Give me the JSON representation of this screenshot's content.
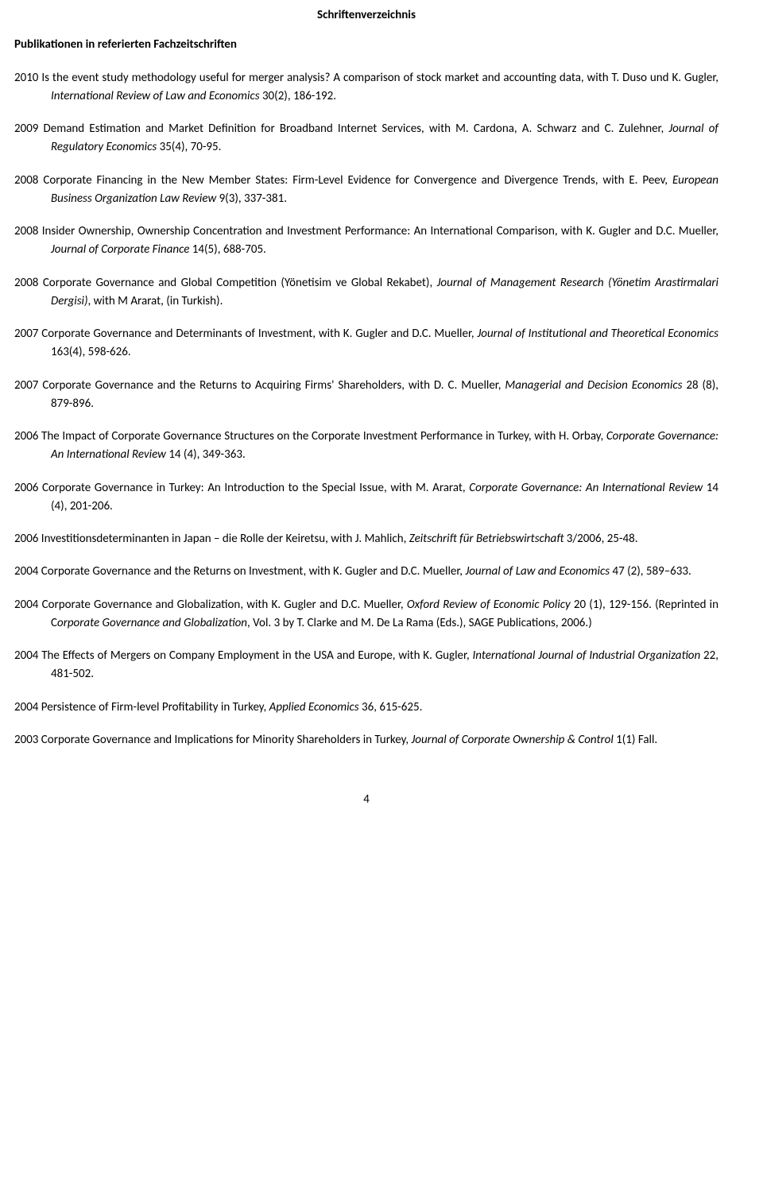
{
  "document_title": "Schriftenverzeichnis",
  "section_heading": "Publikationen in referierten Fachzeitschriften",
  "page_number": "4",
  "entries": [
    {
      "plain1": "2010 Is the event study methodology useful for merger analysis? A comparison of stock market and accounting data, with T. Duso und K. Gugler, ",
      "italic1": "International Review of Law and Economics",
      "plain2": " 30(2), 186-192."
    },
    {
      "plain1": "2009 Demand Estimation and Market Definition for Broadband Internet Services, with M. Cardona, A. Schwarz and C. Zulehner, ",
      "italic1": "Journal of Regulatory Economics",
      "plain2": " 35(4), 70-95."
    },
    {
      "plain1": "2008 Corporate Financing in the New Member States: Firm-Level Evidence for Convergence and Divergence Trends, with E. Peev, ",
      "italic1": "European Business Organization Law Review",
      "plain2": " 9(3), 337-381."
    },
    {
      "plain1": "2008 Insider Ownership, Ownership Concentration and Investment Performance: An International Comparison, with K. Gugler and D.C. Mueller, ",
      "italic1": "Journal of Corporate Finance",
      "plain2": " 14(5), 688-705."
    },
    {
      "plain1": "2008 Corporate Governance and Global Competition (Yönetisim ve Global Rekabet), ",
      "italic1": "Journal of Management Research (Yönetim Arastirmalari Dergisi)",
      "plain2": ", with M Ararat, (in Turkish)."
    },
    {
      "plain1": "2007 Corporate Governance and Determinants of Investment, with K. Gugler and D.C. Mueller, ",
      "italic1": "Journal of Institutional and Theoretical Economics",
      "plain2": " 163(4), 598-626."
    },
    {
      "plain1": "2007 Corporate Governance and the Returns to Acquiring Firms' Shareholders, with D. C. Mueller, ",
      "italic1": "Managerial and Decision Economics",
      "plain2": " 28 (8), 879-896."
    },
    {
      "plain1": "2006 The Impact of Corporate Governance Structures on the Corporate Investment Performance in Turkey, with H. Orbay, ",
      "italic1": "Corporate Governance: An International Review",
      "plain2": " 14 (4), 349-363."
    },
    {
      "plain1": "2006 Corporate Governance in Turkey: An Introduction to the Special Issue, with M. Ararat, ",
      "italic1": "Corporate Governance: An International Review",
      "plain2": " 14 (4), 201-206."
    },
    {
      "plain1": "2006 Investitionsdeterminanten in Japan – die Rolle der Keiretsu, with J. Mahlich, ",
      "italic1": "Zeitschrift für Betriebswirtschaft",
      "plain2": " 3/2006, 25-48."
    },
    {
      "plain1": "2004 Corporate Governance and the Returns on Investment, with K. Gugler and D.C. Mueller, ",
      "italic1": "Journal of Law and Economics",
      "plain2": " 47 (2), 589–633."
    },
    {
      "plain1": "2004 Corporate Governance and Globalization, with K. Gugler and D.C. Mueller, ",
      "italic1": "Oxford Review of Economic Policy",
      "plain2": " 20 (1), 129-156.  (Reprinted in C",
      "italic2": "orporate Governance and Globalization",
      "plain3": ", Vol. 3 by T. Clarke and M. De La Rama (Eds.), SAGE Publications, 2006.)"
    },
    {
      "plain1": "2004 The Effects of Mergers on Company Employment in the USA and Europe, with K. Gugler, ",
      "italic1": "International Journal of Industrial Organization",
      "plain2": " 22, 481-502."
    },
    {
      "plain1": "2004 Persistence of Firm-level Profitability in Turkey, ",
      "italic1": "Applied Economics",
      "plain2": " 36, 615-625."
    },
    {
      "plain1": "2003 Corporate Governance and Implications for Minority Shareholders in Turkey, ",
      "italic1": "Journal of Corporate Ownership & Control",
      "plain2": " 1(1) Fall."
    }
  ]
}
